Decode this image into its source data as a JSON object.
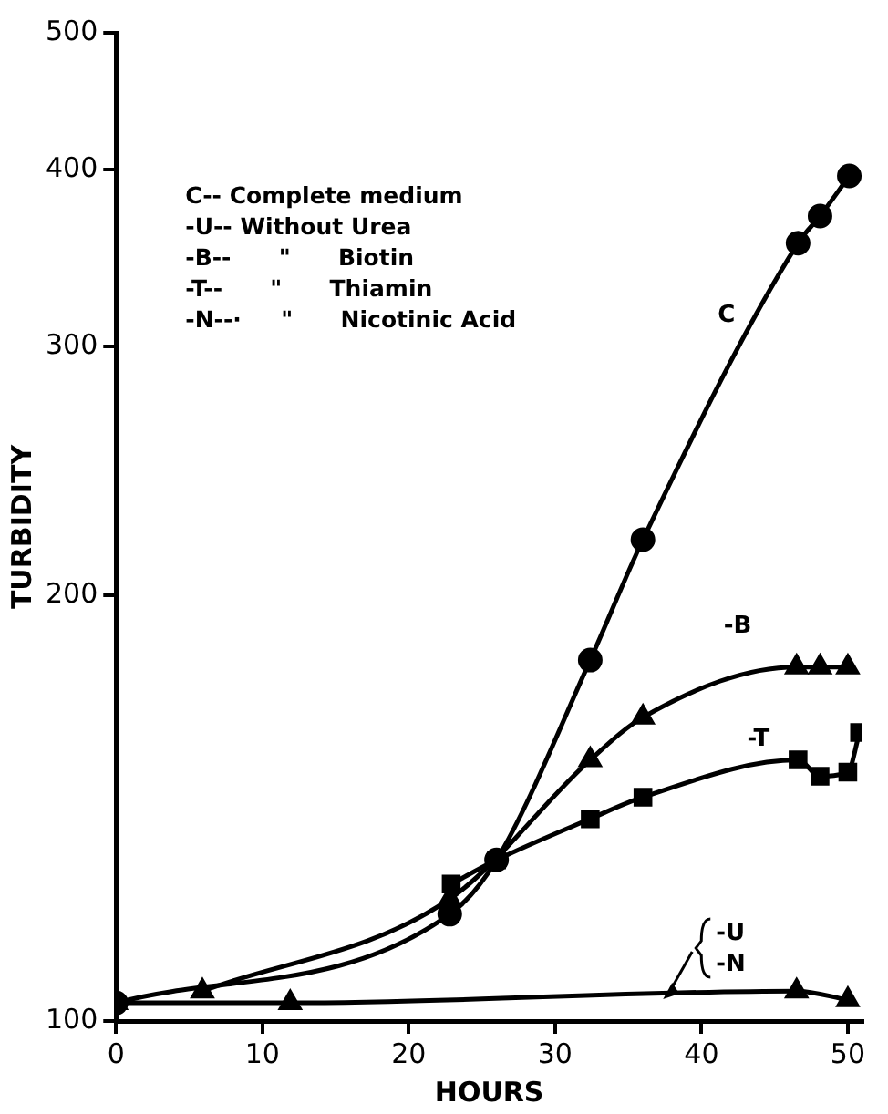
{
  "chart_data": {
    "type": "line",
    "xlabel": "HOURS",
    "ylabel": "TURBIDITY",
    "xlim": [
      0,
      51
    ],
    "xticks": [
      0,
      10,
      20,
      30,
      40,
      50
    ],
    "ylim": [
      100,
      500
    ],
    "yticks": [
      100,
      200,
      300,
      400,
      500
    ],
    "log": "y",
    "grid": false,
    "legend": false,
    "line_style": "solid",
    "series": [
      {
        "name": "C",
        "color": "#000000",
        "marker": "circle",
        "x": [
          0,
          22.8,
          26,
          32.4,
          36,
          46.6,
          48.1,
          50.1
        ],
        "values": [
          103,
          119,
          130,
          180,
          219,
          355,
          371,
          396
        ]
      },
      {
        "name": "-B",
        "color": "#000000",
        "marker": "triangle",
        "x": [
          5.9,
          22.8,
          25.5,
          32.4,
          36,
          46.5,
          48.1,
          50
        ],
        "values": [
          105,
          122,
          null,
          153,
          164,
          178,
          178,
          178
        ]
      },
      {
        "name": "-T",
        "color": "#000000",
        "marker": "square",
        "x": [
          22.9,
          26,
          32.4,
          36,
          46.6,
          48.1,
          50,
          50.8
        ],
        "values": [
          125,
          130,
          139,
          144,
          153,
          149,
          150,
          160
        ]
      },
      {
        "color": "#000000",
        "marker": "triangle",
        "x": [
          0,
          11.9,
          46.5,
          50
        ],
        "values": [
          103,
          103,
          105,
          103.5
        ]
      }
    ],
    "annotations": [
      "C-- Complete medium",
      "-U-- Without Urea",
      "-B--      \"      Biotin",
      "-T--      \"      Thiamin",
      "-N--·     \"      Nicotinic Acid",
      {
        "text": "-U",
        "x": 37,
        "y": 103
      },
      {
        "text": "-N",
        "x": 37,
        "y": 103
      }
    ]
  }
}
